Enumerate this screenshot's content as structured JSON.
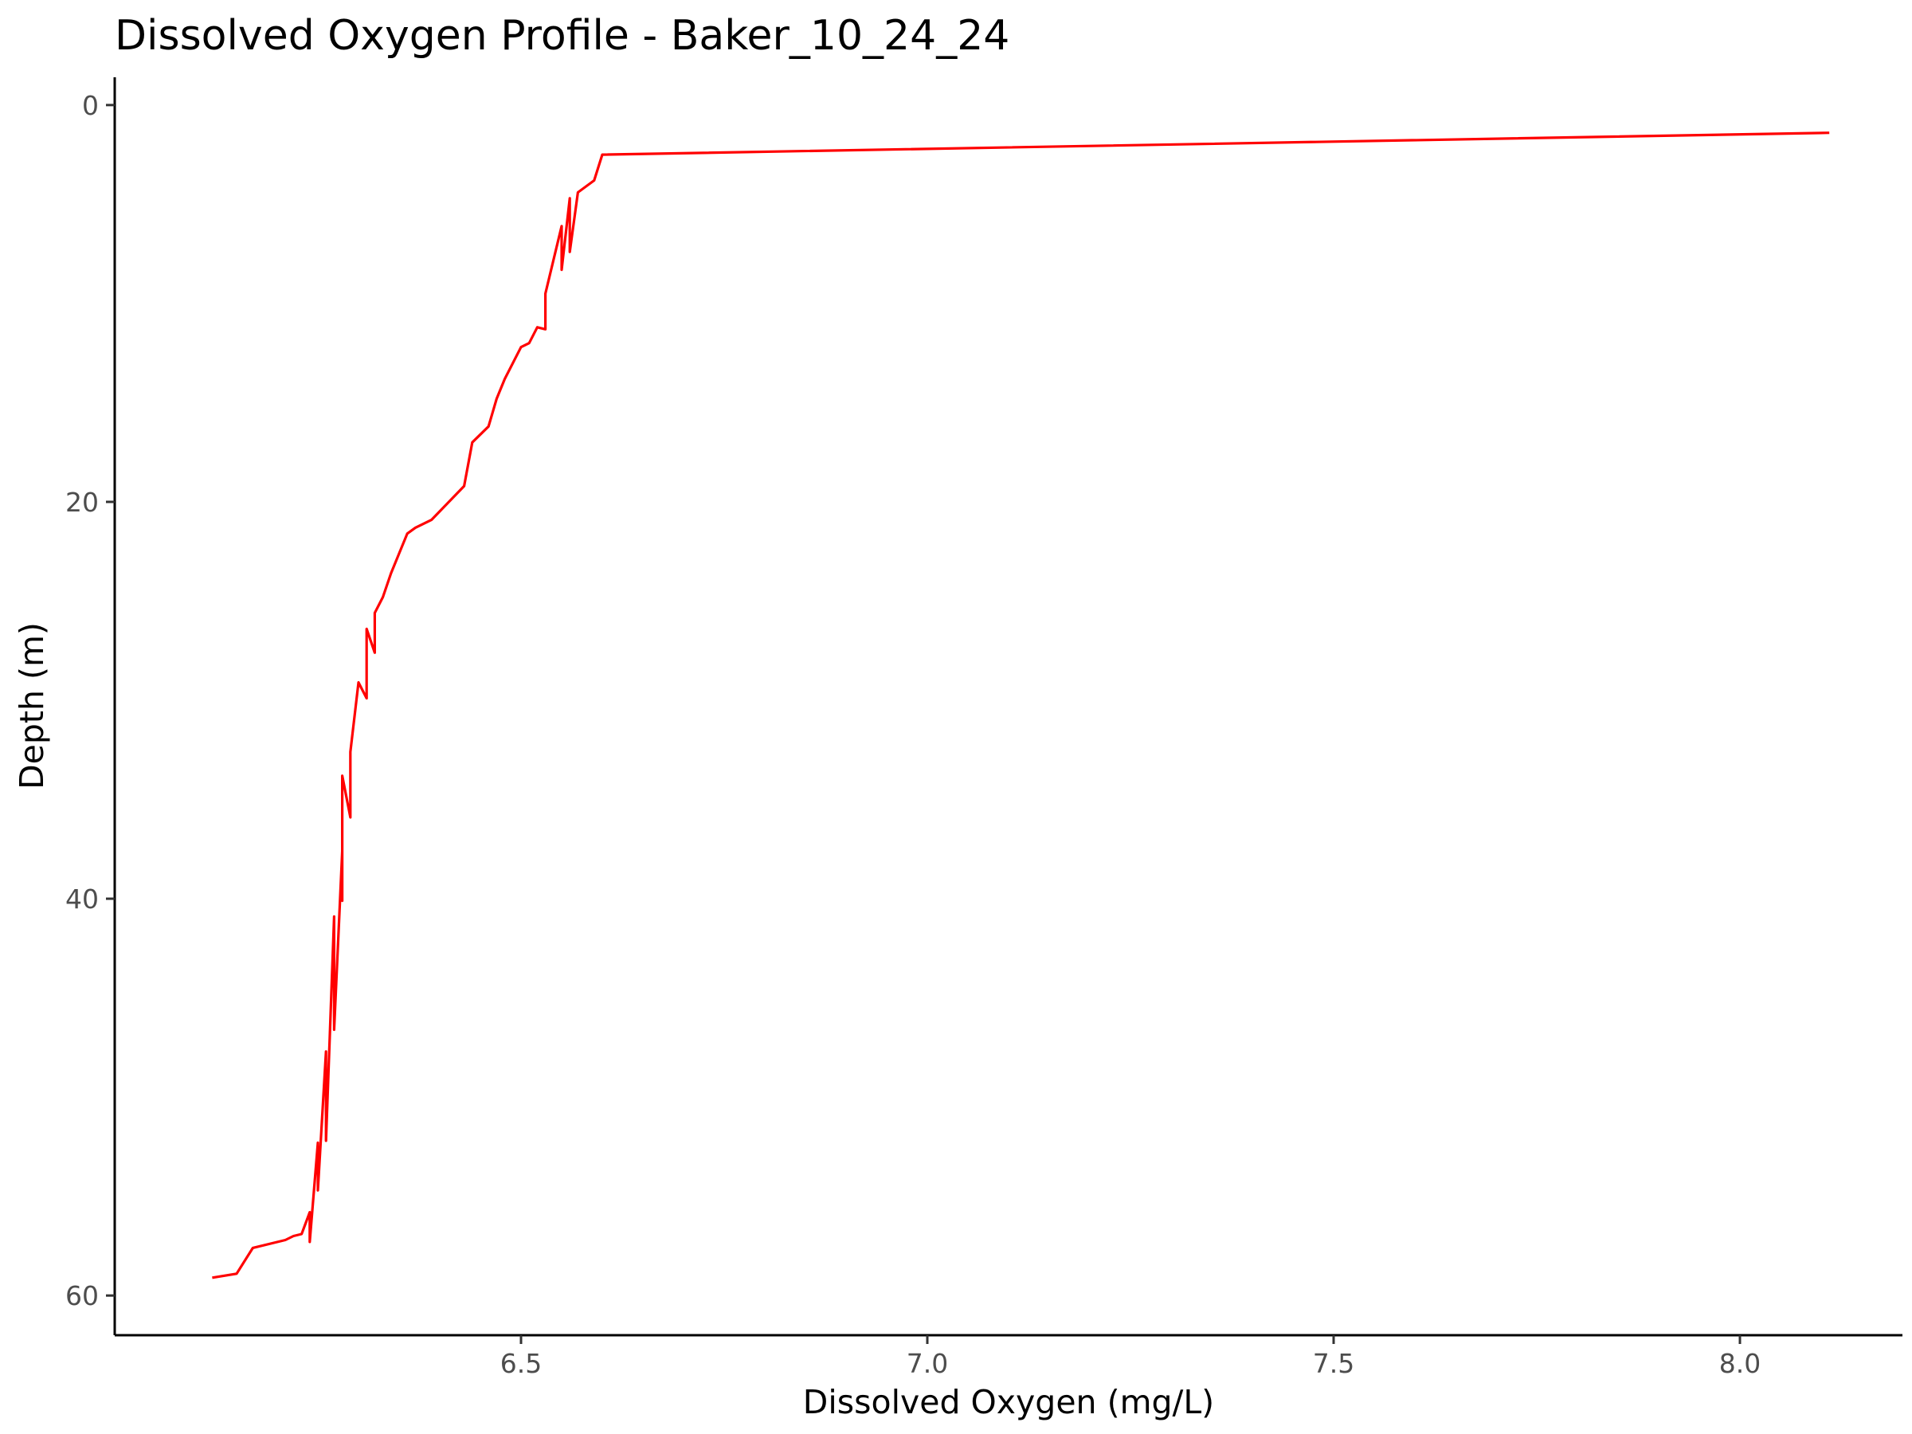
{
  "chart_data": {
    "type": "line",
    "title": "Dissolved Oxygen Profile - Baker_10_24_24",
    "xlabel": "Dissolved Oxygen (mg/L)",
    "ylabel": "Depth (m)",
    "xlim": [
      6.0,
      8.2
    ],
    "ylim": [
      62,
      -1.4
    ],
    "y_reversed": true,
    "xticks": [
      {
        "value": 6.5,
        "label": "6.5"
      },
      {
        "value": 7.0,
        "label": "7.0"
      },
      {
        "value": 7.5,
        "label": "7.5"
      },
      {
        "value": 8.0,
        "label": "8.0"
      }
    ],
    "yticks": [
      {
        "value": 0,
        "label": "0"
      },
      {
        "value": 20,
        "label": "20"
      },
      {
        "value": 40,
        "label": "40"
      },
      {
        "value": 60,
        "label": "60"
      }
    ],
    "grid": false,
    "legend": "none",
    "line_color": "#ff0000",
    "series": [
      {
        "points": [
          [
            8.11,
            1.4
          ],
          [
            6.6,
            2.5
          ],
          [
            6.59,
            3.8
          ],
          [
            6.57,
            4.4
          ],
          [
            6.56,
            7.4
          ],
          [
            6.56,
            4.7
          ],
          [
            6.55,
            8.3
          ],
          [
            6.55,
            6.1
          ],
          [
            6.53,
            9.5
          ],
          [
            6.53,
            11.3
          ],
          [
            6.52,
            11.2
          ],
          [
            6.51,
            12.0
          ],
          [
            6.5,
            12.2
          ],
          [
            6.48,
            13.8
          ],
          [
            6.47,
            14.8
          ],
          [
            6.46,
            16.2
          ],
          [
            6.44,
            17.0
          ],
          [
            6.43,
            19.2
          ],
          [
            6.39,
            20.9
          ],
          [
            6.37,
            21.3
          ],
          [
            6.36,
            21.6
          ],
          [
            6.35,
            22.6
          ],
          [
            6.34,
            23.6
          ],
          [
            6.33,
            24.8
          ],
          [
            6.32,
            25.6
          ],
          [
            6.32,
            27.6
          ],
          [
            6.31,
            26.4
          ],
          [
            6.31,
            29.9
          ],
          [
            6.3,
            29.1
          ],
          [
            6.29,
            32.6
          ],
          [
            6.29,
            35.9
          ],
          [
            6.28,
            33.8
          ],
          [
            6.28,
            40.1
          ],
          [
            6.28,
            37.6
          ],
          [
            6.27,
            46.6
          ],
          [
            6.27,
            40.9
          ],
          [
            6.26,
            52.2
          ],
          [
            6.26,
            47.7
          ],
          [
            6.25,
            54.7
          ],
          [
            6.25,
            52.3
          ],
          [
            6.24,
            57.3
          ],
          [
            6.24,
            55.8
          ],
          [
            6.23,
            56.9
          ],
          [
            6.22,
            57.0
          ],
          [
            6.21,
            57.2
          ],
          [
            6.17,
            57.6
          ],
          [
            6.15,
            58.9
          ],
          [
            6.12,
            59.1
          ]
        ]
      }
    ]
  }
}
